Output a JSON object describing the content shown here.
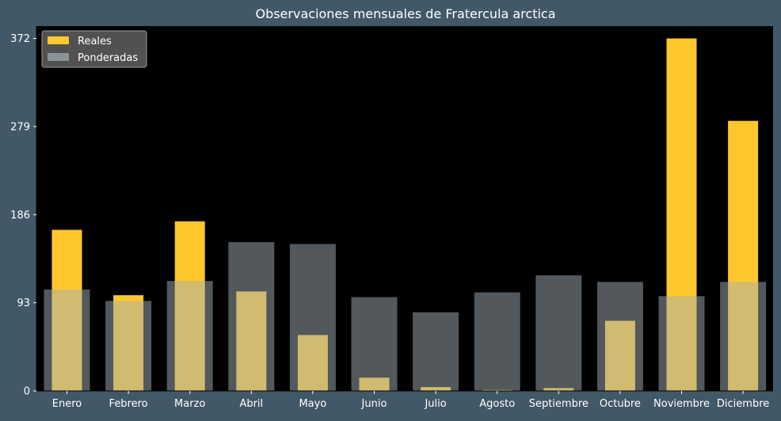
{
  "chart_data": {
    "type": "bar",
    "title": "Observaciones mensuales de Fratercula arctica",
    "xlabel": "",
    "ylabel": "",
    "categories": [
      "Enero",
      "Febrero",
      "Marzo",
      "Abril",
      "Mayo",
      "Junio",
      "Julio",
      "Agosto",
      "Septiembre",
      "Octubre",
      "Noviembre",
      "Diciembre"
    ],
    "series": [
      {
        "name": "Reales",
        "color": "#FFC72C",
        "values": [
          170,
          101,
          179,
          105,
          59,
          14,
          4,
          1,
          3,
          74,
          372,
          285
        ]
      },
      {
        "name": "Ponderadas",
        "color": "#A3B0B5",
        "values": [
          107,
          95,
          116,
          157,
          155,
          99,
          83,
          104,
          122,
          115,
          100,
          115
        ]
      }
    ],
    "ylim": [
      0,
      385
    ],
    "yticks": [
      0,
      93,
      186,
      279,
      372
    ],
    "grid": false,
    "legend_position": "top-left",
    "colors": {
      "background": "#425866",
      "plot_background": "#000000",
      "text": "#FFFFFF"
    }
  }
}
